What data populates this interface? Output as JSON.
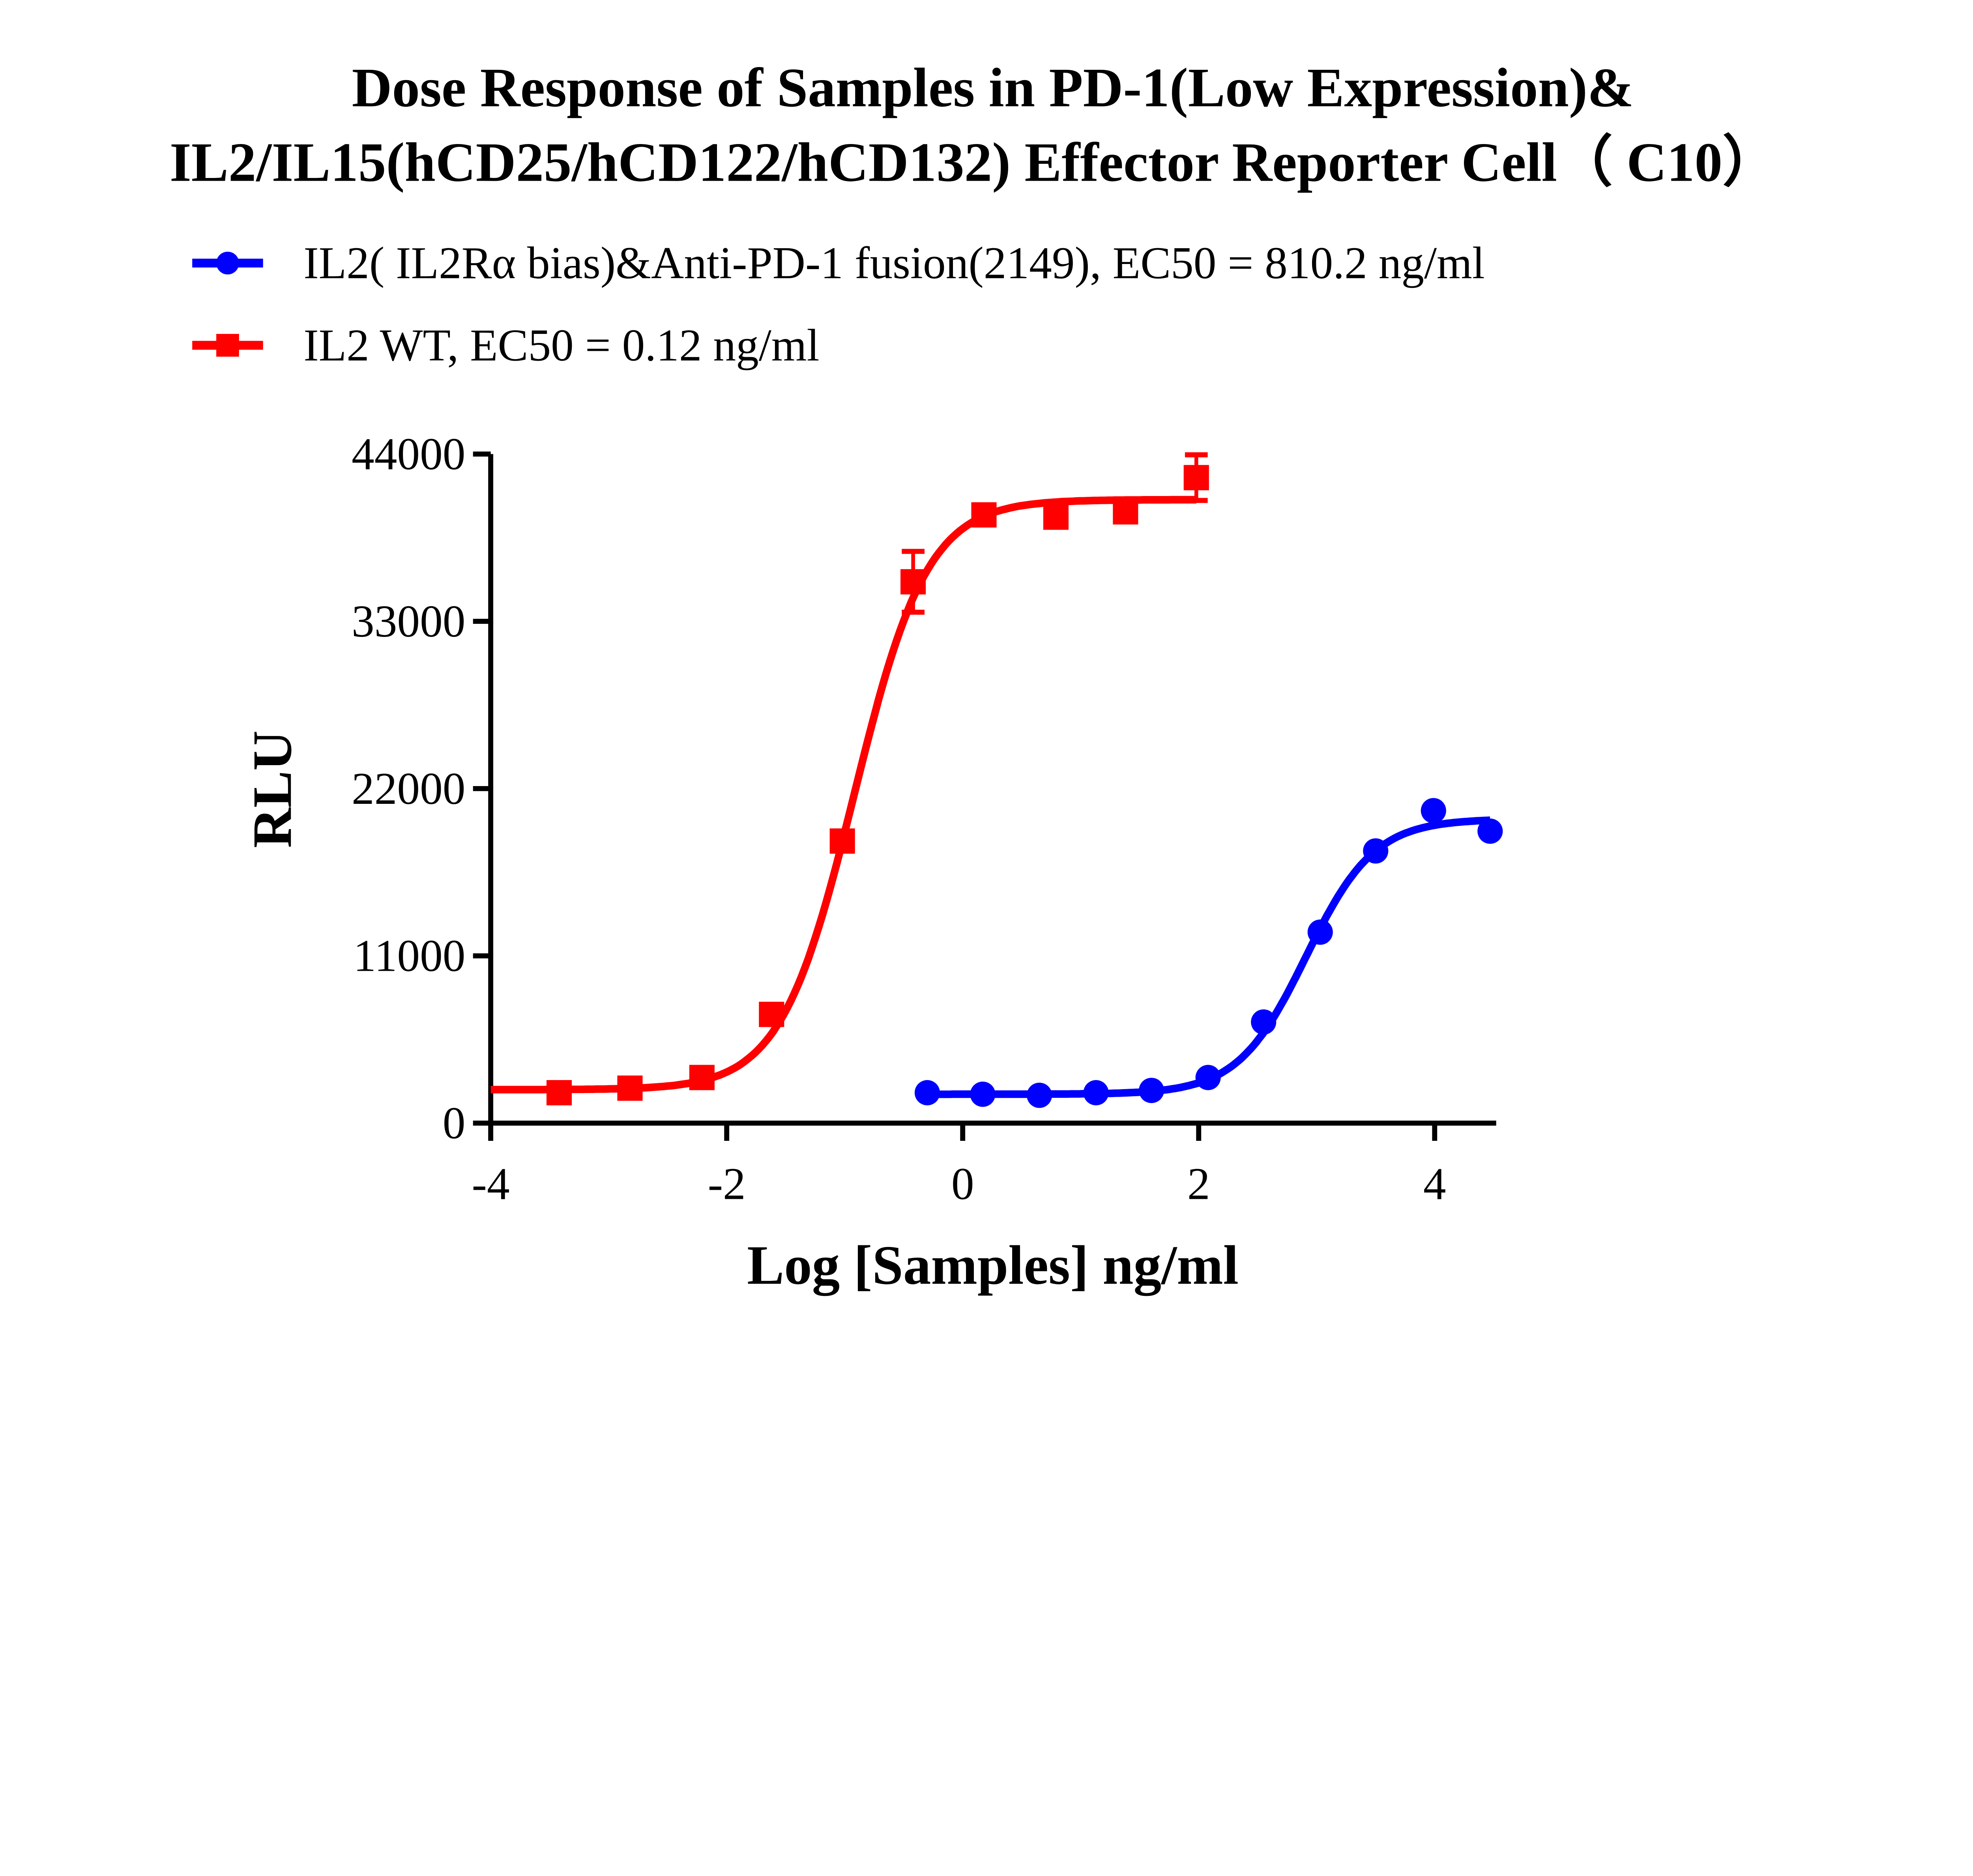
{
  "chart_data": {
    "type": "scatter",
    "title_lines": [
      "Dose Response of Samples in PD-1(Low Expression)&",
      "IL2/IL15(hCD25/hCD122/hCD132) Effector Reporter Cell（ C10）"
    ],
    "xlabel": "Log [Samples] ng/ml",
    "ylabel": "RLU",
    "xlim": [
      -4,
      4.5
    ],
    "ylim": [
      0,
      44000
    ],
    "xticks": [
      -4,
      -2,
      0,
      2,
      4
    ],
    "xtick_labels": [
      "-4",
      "-2",
      "0",
      "2",
      "4"
    ],
    "yticks": [
      0,
      11000,
      22000,
      33000,
      44000
    ],
    "ytick_labels": [
      "0",
      "11000",
      "22000",
      "33000",
      "44000"
    ],
    "legend_position": "top",
    "series": [
      {
        "name": "IL2( IL2Rα bias)&Anti-PD-1 fusion(2149), EC50 = 810.2 ng/ml",
        "color": "#0000ff",
        "marker": "circle",
        "x": [
          -0.3,
          0.17,
          0.65,
          1.13,
          1.6,
          2.08,
          2.55,
          3.03,
          3.5,
          3.99,
          4.47
        ],
        "y": [
          2000,
          1900,
          1830,
          2000,
          2150,
          3000,
          6650,
          12560,
          17900,
          20550,
          19200
        ],
        "fit": {
          "bottom": 1900,
          "top": 20000,
          "logEC50": 2.91,
          "hill": 1.5,
          "xrange": [
            -0.3,
            4.47
          ]
        }
      },
      {
        "name": "IL2 WT, EC50 = 0.12 ng/ml",
        "color": "#ff0000",
        "marker": "square",
        "x": [
          -3.42,
          -2.82,
          -2.21,
          -1.62,
          -1.02,
          -0.42,
          0.18,
          0.79,
          1.38,
          1.98
        ],
        "y": [
          2000,
          2300,
          3000,
          7150,
          18550,
          35600,
          40000,
          39850,
          40200,
          42450
        ],
        "err": [
          0,
          0,
          0,
          0,
          0,
          2000,
          0,
          0,
          0,
          1500
        ],
        "fit": {
          "bottom": 2200,
          "top": 41000,
          "logEC50": -0.92,
          "hill": 1.4,
          "xrange": [
            -4,
            1.98
          ]
        }
      }
    ]
  }
}
